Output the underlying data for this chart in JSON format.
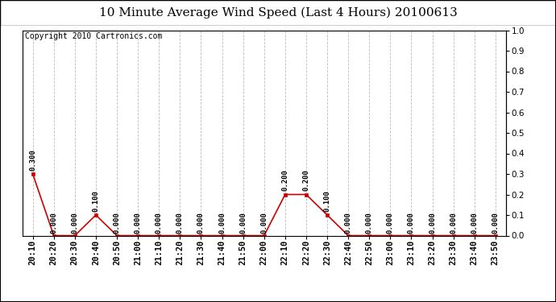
{
  "title": "10 Minute Average Wind Speed (Last 4 Hours) 20100613",
  "copyright": "Copyright 2010 Cartronics.com",
  "background_color": "#ffffff",
  "plot_bg_color": "#ffffff",
  "grid_color": "#bbbbbb",
  "line_color": "#cc0000",
  "marker_color": "#cc0000",
  "annotation_color": "#000000",
  "times": [
    "20:10",
    "20:20",
    "20:30",
    "20:40",
    "20:50",
    "21:00",
    "21:10",
    "21:20",
    "21:30",
    "21:40",
    "21:50",
    "22:00",
    "22:10",
    "22:20",
    "22:30",
    "22:40",
    "22:50",
    "23:00",
    "23:10",
    "23:20",
    "23:30",
    "23:40",
    "23:50"
  ],
  "values": [
    0.3,
    0.0,
    0.0,
    0.1,
    0.0,
    0.0,
    0.0,
    0.0,
    0.0,
    0.0,
    0.0,
    0.0,
    0.2,
    0.2,
    0.1,
    0.0,
    0.0,
    0.0,
    0.0,
    0.0,
    0.0,
    0.0,
    0.0
  ],
  "ylim": [
    0.0,
    1.0
  ],
  "yticks": [
    0.0,
    0.1,
    0.2,
    0.3,
    0.4,
    0.5,
    0.6,
    0.7,
    0.8,
    0.9,
    1.0
  ],
  "title_fontsize": 11,
  "annotation_fontsize": 6.5,
  "copyright_fontsize": 7,
  "tick_fontsize": 7.5
}
